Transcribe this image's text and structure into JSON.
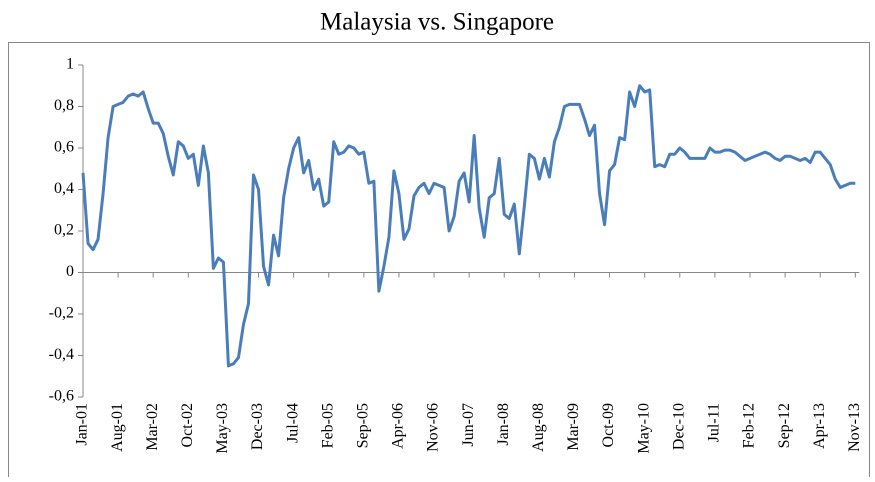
{
  "chart_data": {
    "type": "line",
    "title": "Malaysia vs. Singapore",
    "categories": [
      "Jan-01",
      null,
      null,
      null,
      null,
      null,
      null,
      "Aug-01",
      null,
      null,
      null,
      null,
      null,
      null,
      "Mar-02",
      null,
      null,
      null,
      null,
      null,
      null,
      "Oct-02",
      null,
      null,
      null,
      null,
      null,
      null,
      "May-03",
      null,
      null,
      null,
      null,
      null,
      null,
      "Dec-03",
      null,
      null,
      null,
      null,
      null,
      null,
      "Jul-04",
      null,
      null,
      null,
      null,
      null,
      null,
      "Feb-05",
      null,
      null,
      null,
      null,
      null,
      null,
      "Sep-05",
      null,
      null,
      null,
      null,
      null,
      null,
      "Apr-06",
      null,
      null,
      null,
      null,
      null,
      null,
      "Nov-06",
      null,
      null,
      null,
      null,
      null,
      null,
      "Jun-07",
      null,
      null,
      null,
      null,
      null,
      null,
      "Jan-08",
      null,
      null,
      null,
      null,
      null,
      null,
      "Aug-08",
      null,
      null,
      null,
      null,
      null,
      null,
      "Mar-09",
      null,
      null,
      null,
      null,
      null,
      null,
      "Oct-09",
      null,
      null,
      null,
      null,
      null,
      null,
      "May-10",
      null,
      null,
      null,
      null,
      null,
      null,
      "Dec-10",
      null,
      null,
      null,
      null,
      null,
      null,
      "Jul-11",
      null,
      null,
      null,
      null,
      null,
      null,
      "Feb-12",
      null,
      null,
      null,
      null,
      null,
      null,
      "Sep-12",
      null,
      null,
      null,
      null,
      null,
      null,
      "Apr-13",
      null,
      null,
      null,
      null,
      null,
      null,
      "Nov-13"
    ],
    "values": [
      0.48,
      0.14,
      0.11,
      0.16,
      0.38,
      0.65,
      0.8,
      0.81,
      0.82,
      0.85,
      0.86,
      0.85,
      0.87,
      0.79,
      0.72,
      0.72,
      0.67,
      0.56,
      0.47,
      0.63,
      0.61,
      0.55,
      0.57,
      0.42,
      0.61,
      0.48,
      0.02,
      0.07,
      0.05,
      -0.45,
      -0.44,
      -0.41,
      -0.25,
      -0.15,
      0.47,
      0.4,
      0.03,
      -0.06,
      0.18,
      0.08,
      0.36,
      0.5,
      0.6,
      0.65,
      0.48,
      0.54,
      0.4,
      0.45,
      0.32,
      0.34,
      0.63,
      0.57,
      0.58,
      0.61,
      0.6,
      0.57,
      0.58,
      0.43,
      0.44,
      -0.09,
      0.03,
      0.17,
      0.49,
      0.38,
      0.16,
      0.21,
      0.37,
      0.41,
      0.43,
      0.38,
      0.43,
      0.42,
      0.41,
      0.2,
      0.27,
      0.44,
      0.48,
      0.34,
      0.66,
      0.31,
      0.17,
      0.36,
      0.38,
      0.55,
      0.28,
      0.26,
      0.33,
      0.09,
      0.32,
      0.57,
      0.55,
      0.45,
      0.55,
      0.46,
      0.63,
      0.7,
      0.8,
      0.81,
      0.81,
      0.81,
      0.74,
      0.66,
      0.71,
      0.38,
      0.23,
      0.49,
      0.52,
      0.65,
      0.64,
      0.87,
      0.8,
      0.9,
      0.87,
      0.88,
      0.51,
      0.52,
      0.51,
      0.57,
      0.57,
      0.6,
      0.58,
      0.55,
      0.55,
      0.55,
      0.55,
      0.6,
      0.58,
      0.58,
      0.59,
      0.59,
      0.58,
      0.56,
      0.54,
      0.55,
      0.56,
      0.57,
      0.58,
      0.57,
      0.55,
      0.54,
      0.56,
      0.56,
      0.55,
      0.54,
      0.55,
      0.53,
      0.58,
      0.58,
      0.55,
      0.52,
      0.45,
      0.41,
      0.42,
      0.43,
      0.43
    ],
    "color": "#4a7ebb",
    "ylim": [
      -0.6,
      1
    ],
    "yticks": [
      {
        "value": -0.6,
        "label": "-0,6"
      },
      {
        "value": -0.4,
        "label": "-0,4"
      },
      {
        "value": -0.2,
        "label": "-0,2"
      },
      0,
      {
        "value": 0.2,
        "label": "0,2"
      },
      {
        "value": 0.4,
        "label": "0,4"
      },
      {
        "value": 0.6,
        "label": "0,6"
      },
      {
        "value": 0.8,
        "label": "0,8"
      },
      1
    ]
  }
}
